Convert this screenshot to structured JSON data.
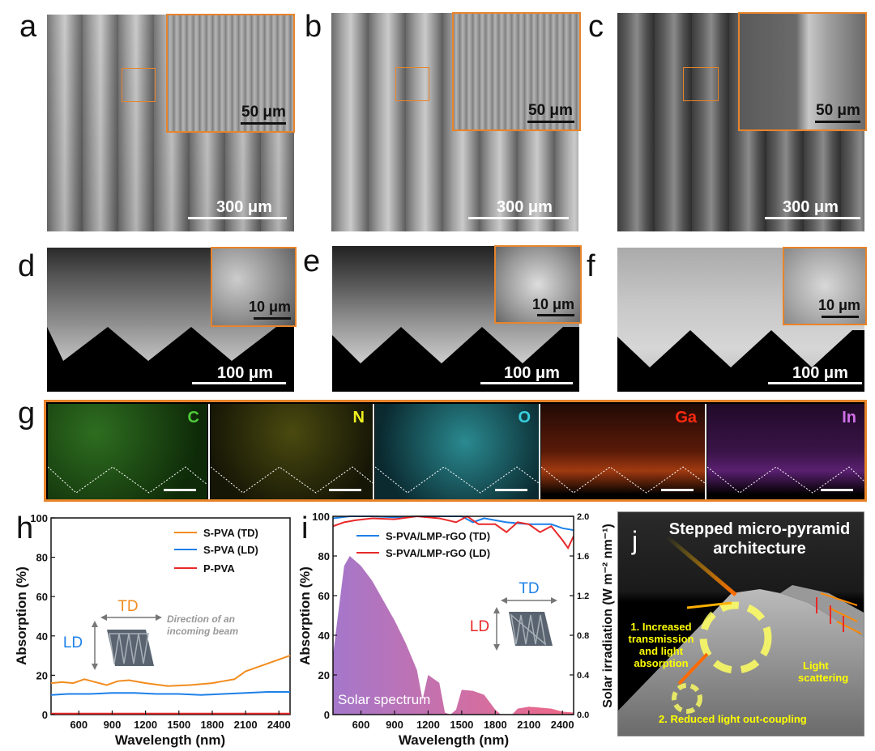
{
  "panel_labels": {
    "a": "a",
    "b": "b",
    "c": "c",
    "d": "d",
    "e": "e",
    "f": "f",
    "g": "g",
    "h": "h",
    "i": "i",
    "j": "j"
  },
  "scale_bars": {
    "top_main": "300 μm",
    "top_inset": "50 μm",
    "mid_main": "100 μm",
    "mid_inset": "10 μm"
  },
  "eds": [
    {
      "element": "C",
      "color": "#4ecb3a"
    },
    {
      "element": "N",
      "color": "#f0f020"
    },
    {
      "element": "O",
      "color": "#38d0e0"
    },
    {
      "element": "Ga",
      "color": "#ff2a10"
    },
    {
      "element": "In",
      "color": "#d070e8"
    }
  ],
  "colors": {
    "accent_orange": "#e8842a",
    "td_orange": "#f28c1e",
    "ld_blue": "#1e80e8",
    "red": "#e82828",
    "pink": "#f06080",
    "purple": "#a070c8",
    "yellow": "#ffff00"
  },
  "chart_data": [
    {
      "type": "line",
      "panel": "h",
      "xlabel": "Wavelength (nm)",
      "ylabel": "Absorption (%)",
      "xlim": [
        350,
        2500
      ],
      "ylim": [
        0,
        100
      ],
      "xticks": [
        600,
        900,
        1200,
        1500,
        1800,
        2100,
        2400
      ],
      "yticks": [
        0,
        20,
        40,
        60,
        80,
        100
      ],
      "legend_position": "top-right",
      "series": [
        {
          "name": "S-PVA (TD)",
          "color": "#f28c1e",
          "x": [
            350,
            450,
            550,
            650,
            750,
            850,
            950,
            1050,
            1200,
            1400,
            1600,
            1800,
            1900,
            2000,
            2100,
            2200,
            2300,
            2400,
            2500
          ],
          "y": [
            16,
            16.5,
            16,
            18,
            16.5,
            15,
            17,
            17.5,
            16,
            14.5,
            15,
            16,
            17,
            18,
            22,
            24,
            26,
            28,
            30
          ]
        },
        {
          "name": "S-PVA (LD)",
          "color": "#1e80e8",
          "x": [
            350,
            500,
            700,
            900,
            1100,
            1300,
            1500,
            1700,
            1900,
            2100,
            2300,
            2500
          ],
          "y": [
            10,
            10.5,
            10.5,
            11,
            11,
            10.5,
            10.5,
            10,
            10.5,
            11,
            11.5,
            11.5
          ]
        },
        {
          "name": "P-PVA",
          "color": "#e82828",
          "x": [
            350,
            2500
          ],
          "y": [
            0.5,
            0.5
          ]
        }
      ],
      "annotations": {
        "td": "TD",
        "ld": "LD",
        "beam": "Direction of an incoming beam"
      }
    },
    {
      "type": "area",
      "panel": "i",
      "xlabel": "Wavelength (nm)",
      "ylabel": "Absorption (%)",
      "y2label": "Solar irradiation (W m⁻² nm⁻¹)",
      "xlim": [
        350,
        2500
      ],
      "ylim": [
        0,
        100
      ],
      "y2lim": [
        0,
        2.0
      ],
      "xticks": [
        600,
        900,
        1200,
        1500,
        1800,
        2100,
        2400
      ],
      "yticks": [
        0,
        20,
        40,
        60,
        80,
        100
      ],
      "y2ticks": [
        "0.0",
        "0.4",
        "0.8",
        "1.2",
        "1.6",
        "2.0"
      ],
      "legend_position": "top-left",
      "series": [
        {
          "name": "S-PVA/LMP-rGO (TD)",
          "color": "#1e80e8",
          "x": [
            350,
            500,
            700,
            900,
            1100,
            1300,
            1500,
            1600,
            1700,
            1900,
            2100,
            2300,
            2400,
            2500
          ],
          "y": [
            99,
            100,
            100,
            99.5,
            100,
            100,
            100,
            97,
            99,
            97,
            96,
            96,
            94,
            93
          ]
        },
        {
          "name": "S-PVA/LMP-rGO (LD)",
          "color": "#e82828",
          "x": [
            350,
            450,
            550,
            700,
            900,
            1100,
            1300,
            1450,
            1550,
            1650,
            1800,
            1900,
            2000,
            2100,
            2200,
            2300,
            2400,
            2450,
            2500
          ],
          "y": [
            95,
            97,
            98,
            99,
            98.5,
            100,
            99,
            97,
            100,
            96,
            96,
            92,
            97,
            96,
            92,
            95,
            88,
            84,
            90
          ]
        },
        {
          "name": "solar",
          "color": "#c070b8",
          "x": [
            350,
            450,
            500,
            600,
            700,
            800,
            900,
            1000,
            1100,
            1150,
            1200,
            1300,
            1350,
            1400,
            1450,
            1500,
            1600,
            1700,
            1800,
            1850,
            1950,
            2000,
            2100,
            2200,
            2300,
            2400,
            2500
          ],
          "y2": [
            0.6,
            1.5,
            1.6,
            1.5,
            1.35,
            1.15,
            0.95,
            0.72,
            0.45,
            0.15,
            0.4,
            0.32,
            0.02,
            0.0,
            0.05,
            0.25,
            0.24,
            0.2,
            0.05,
            0.0,
            0.0,
            0.06,
            0.08,
            0.07,
            0.06,
            0.03,
            0.02
          ]
        }
      ],
      "annotations": {
        "td": "TD",
        "ld": "LD",
        "solar": "Solar spectrum"
      }
    }
  ],
  "panel_j": {
    "title_line1": "Stepped micro-pyramid",
    "title_line2": "architecture",
    "note1_line1": "1. Increased",
    "note1_line2": "transmission",
    "note1_line3": "and light",
    "note1_line4": "absorption",
    "note2": "2. Reduced light out-coupling",
    "note3_line1": "Light",
    "note3_line2": "scattering"
  }
}
